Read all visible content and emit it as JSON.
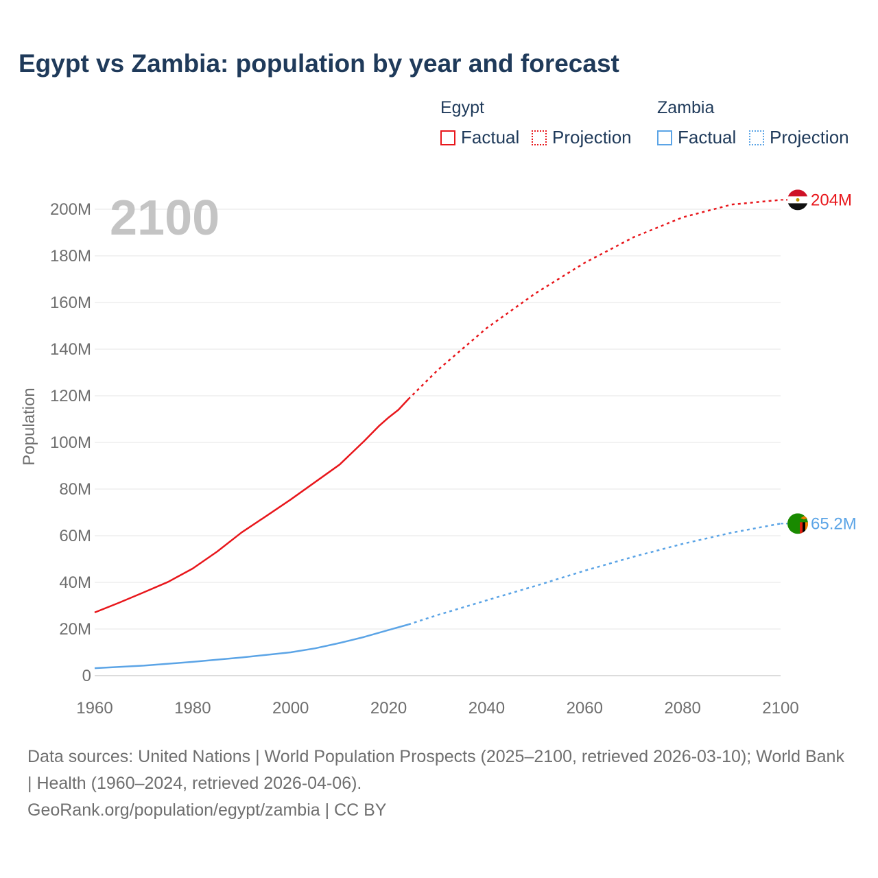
{
  "title": "Egypt vs Zambia: population by year and forecast",
  "legend": {
    "groups": [
      {
        "name": "Egypt",
        "color": "#e8161b",
        "factual_label": "Factual",
        "projection_label": "Projection"
      },
      {
        "name": "Zambia",
        "color": "#5ba4e6",
        "factual_label": "Factual",
        "projection_label": "Projection"
      }
    ]
  },
  "year_watermark": "2100",
  "footer": {
    "sources": "Data sources: United Nations | World Population Prospects (2025–2100, retrieved 2026-03-10); World Bank | Health (1960–2024, retrieved 2026-04-06).",
    "url": "GeoRank.org/population/egypt/zambia | CC BY"
  },
  "chart_data": {
    "type": "line",
    "title": "Egypt vs Zambia: population by year and forecast",
    "xlabel": "",
    "ylabel": "Population",
    "xlim": [
      1960,
      2100
    ],
    "ylim": [
      0,
      200000000
    ],
    "x_ticks": [
      1960,
      1980,
      2000,
      2020,
      2040,
      2060,
      2080,
      2100
    ],
    "x_tick_labels": [
      "1960",
      "1980",
      "2000",
      "2020",
      "2040",
      "2060",
      "2080",
      "2100"
    ],
    "y_ticks": [
      0,
      20000000,
      40000000,
      60000000,
      80000000,
      100000000,
      120000000,
      140000000,
      160000000,
      180000000,
      200000000
    ],
    "y_tick_labels": [
      "0",
      "20M",
      "40M",
      "60M",
      "80M",
      "100M",
      "120M",
      "140M",
      "160M",
      "180M",
      "200M"
    ],
    "grid": true,
    "series": [
      {
        "name": "Egypt",
        "color": "#e8161b",
        "end_label": "204M",
        "factual": {
          "x": [
            1960,
            1965,
            1970,
            1975,
            1980,
            1985,
            1990,
            1995,
            2000,
            2005,
            2010,
            2015,
            2018,
            2020,
            2022,
            2024
          ],
          "y": [
            27100000,
            31300000,
            35700000,
            40200000,
            45900000,
            53200000,
            61400000,
            68400000,
            75500000,
            83000000,
            90500000,
            100600000,
            107000000,
            110700000,
            114000000,
            118500000
          ]
        },
        "projection": {
          "x": [
            2024,
            2030,
            2040,
            2050,
            2060,
            2070,
            2080,
            2090,
            2100
          ],
          "y": [
            118500000,
            131000000,
            149000000,
            164000000,
            177000000,
            188000000,
            196500000,
            202000000,
            204000000
          ]
        }
      },
      {
        "name": "Zambia",
        "color": "#5ba4e6",
        "end_label": "65.2M",
        "factual": {
          "x": [
            1960,
            1970,
            1980,
            1990,
            2000,
            2005,
            2010,
            2015,
            2020,
            2024
          ],
          "y": [
            3200000,
            4300000,
            5900000,
            7800000,
            10000000,
            11700000,
            14000000,
            16600000,
            19600000,
            21900000
          ]
        },
        "projection": {
          "x": [
            2024,
            2030,
            2040,
            2050,
            2060,
            2070,
            2080,
            2090,
            2100
          ],
          "y": [
            21900000,
            26000000,
            32300000,
            38500000,
            45000000,
            51000000,
            56500000,
            61300000,
            65200000
          ]
        }
      }
    ]
  }
}
